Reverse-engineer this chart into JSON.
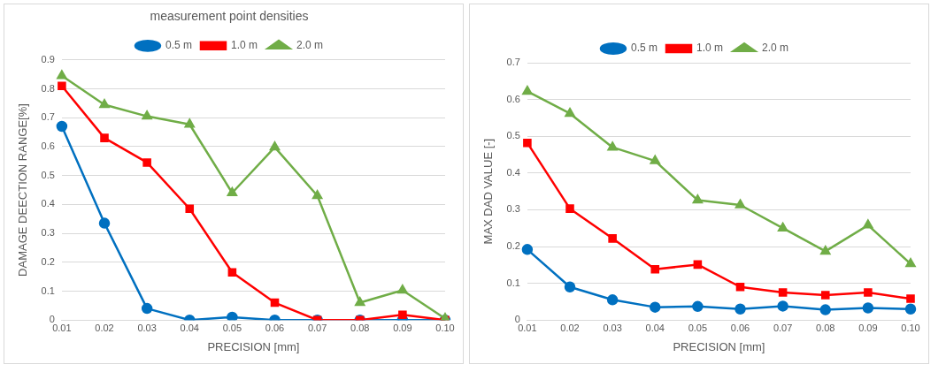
{
  "chart_data": [
    {
      "type": "line",
      "title": "measurement point densities",
      "xlabel": "PRECISION [mm]",
      "ylabel": "DAMAGE DEECTION RANGE[%]",
      "categories": [
        "0.01",
        "0.02",
        "0.03",
        "0.04",
        "0.05",
        "0.06",
        "0.07",
        "0.08",
        "0.09",
        "0.10"
      ],
      "ylim": [
        0,
        0.9
      ],
      "yticks": [
        0,
        0.1,
        0.2,
        0.3,
        0.4,
        0.5,
        0.6,
        0.7,
        0.8,
        0.9
      ],
      "grid": "y",
      "legend": "top",
      "series": [
        {
          "name": "0.5 m",
          "color": "#0070c0",
          "marker": "circle",
          "values": [
            0.67,
            0.335,
            0.04,
            0,
            0.01,
            0,
            0,
            0,
            0,
            0
          ]
        },
        {
          "name": "1.0 m",
          "color": "#ff0000",
          "marker": "square",
          "values": [
            0.81,
            0.63,
            0.545,
            0.385,
            0.165,
            0.06,
            0,
            0,
            0.018,
            0
          ]
        },
        {
          "name": "2.0 m",
          "color": "#70ad47",
          "marker": "triangle",
          "values": [
            0.845,
            0.745,
            0.705,
            0.677,
            0.44,
            0.598,
            0.43,
            0.06,
            0.103,
            0.005
          ]
        }
      ]
    },
    {
      "type": "line",
      "xlabel": "PRECISION [mm]",
      "ylabel": "MAX DAD VALUE [-]",
      "categories": [
        "0.01",
        "0.02",
        "0.03",
        "0.04",
        "0.05",
        "0.06",
        "0.07",
        "0.08",
        "0.09",
        "0.10"
      ],
      "ylim": [
        0,
        0.7
      ],
      "yticks": [
        0,
        0.1,
        0.2,
        0.3,
        0.4,
        0.5,
        0.6,
        0.7
      ],
      "grid": "y",
      "legend": "top",
      "series": [
        {
          "name": "0.5 m",
          "color": "#0070c0",
          "marker": "circle",
          "values": [
            0.192,
            0.09,
            0.055,
            0.035,
            0.037,
            0.03,
            0.038,
            0.028,
            0.033,
            0.03
          ]
        },
        {
          "name": "1.0 m",
          "color": "#ff0000",
          "marker": "square",
          "values": [
            0.482,
            0.303,
            0.222,
            0.138,
            0.151,
            0.09,
            0.075,
            0.068,
            0.075,
            0.058
          ]
        },
        {
          "name": "2.0 m",
          "color": "#70ad47",
          "marker": "triangle",
          "values": [
            0.622,
            0.562,
            0.47,
            0.433,
            0.326,
            0.313,
            0.25,
            0.187,
            0.258,
            0.153
          ]
        }
      ]
    }
  ]
}
